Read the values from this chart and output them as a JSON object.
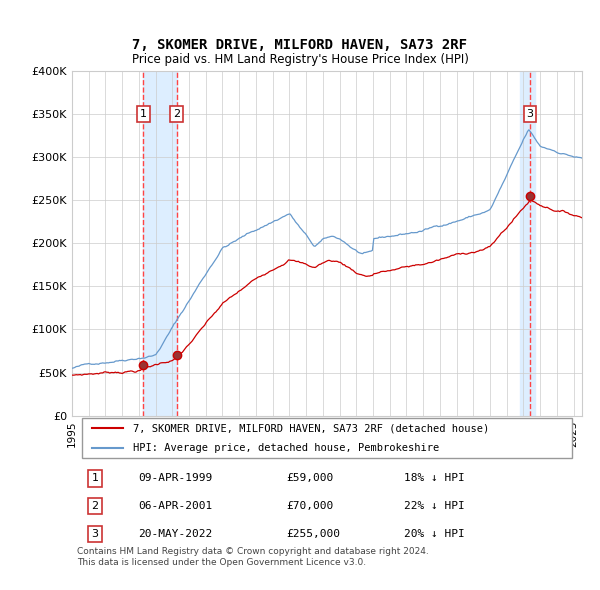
{
  "title": "7, SKOMER DRIVE, MILFORD HAVEN, SA73 2RF",
  "subtitle": "Price paid vs. HM Land Registry's House Price Index (HPI)",
  "legend_label_red": "7, SKOMER DRIVE, MILFORD HAVEN, SA73 2RF (detached house)",
  "legend_label_blue": "HPI: Average price, detached house, Pembrokeshire",
  "footer": "Contains HM Land Registry data © Crown copyright and database right 2024.\nThis data is licensed under the Open Government Licence v3.0.",
  "sales": [
    {
      "num": 1,
      "date": "09-APR-1999",
      "year": 1999.27,
      "price": 59000,
      "hpi_pct": "18% ↓ HPI"
    },
    {
      "num": 2,
      "date": "06-APR-2001",
      "year": 2001.26,
      "price": 70000,
      "hpi_pct": "22% ↓ HPI"
    },
    {
      "num": 3,
      "date": "20-MAY-2022",
      "year": 2022.38,
      "price": 255000,
      "hpi_pct": "20% ↓ HPI"
    }
  ],
  "ylim": [
    0,
    400000
  ],
  "xlim_start": 1995.0,
  "xlim_end": 2025.5,
  "yticks": [
    0,
    50000,
    100000,
    150000,
    200000,
    250000,
    300000,
    350000,
    400000
  ],
  "ytick_labels": [
    "£0",
    "£50K",
    "£100K",
    "£150K",
    "£200K",
    "£250K",
    "£300K",
    "£350K",
    "£400K"
  ],
  "xticks": [
    1995,
    1996,
    1997,
    1998,
    1999,
    2000,
    2001,
    2002,
    2003,
    2004,
    2005,
    2006,
    2007,
    2008,
    2009,
    2010,
    2011,
    2012,
    2013,
    2014,
    2015,
    2016,
    2017,
    2018,
    2019,
    2020,
    2021,
    2022,
    2023,
    2024,
    2025
  ],
  "color_red": "#cc0000",
  "color_blue": "#6699cc",
  "color_highlight": "#ddeeff",
  "color_dashed": "#ff4444",
  "background": "#ffffff",
  "grid_color": "#cccccc"
}
